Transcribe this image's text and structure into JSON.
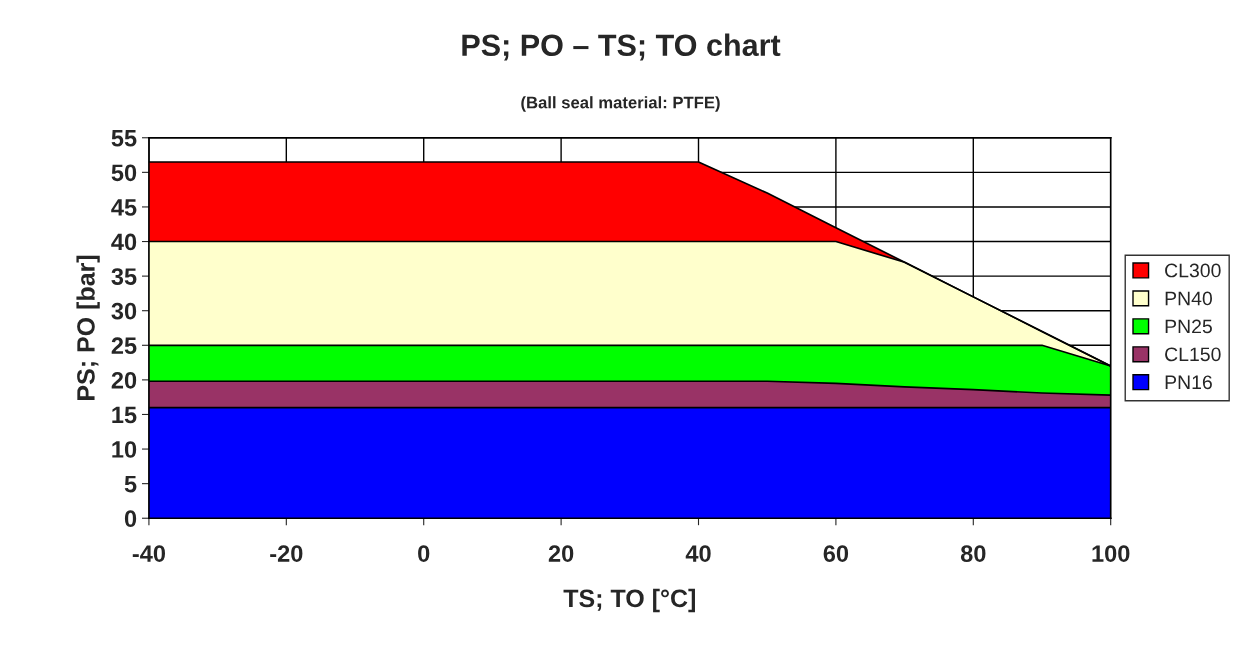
{
  "chart_data": {
    "type": "area",
    "title": "PS; PO – TS; TO chart",
    "subtitle": "(Ball seal material: PTFE)",
    "xlabel": "TS; TO [°C]",
    "ylabel": "PS; PO [bar]",
    "x": [
      -40,
      -30,
      -20,
      -10,
      0,
      10,
      20,
      30,
      40,
      50,
      60,
      70,
      80,
      90,
      100
    ],
    "series": [
      {
        "name": "CL300",
        "color": "#ff0000",
        "values": [
          51.5,
          51.5,
          51.5,
          51.5,
          51.5,
          51.5,
          51.5,
          51.5,
          51.5,
          47,
          42,
          37,
          32,
          27,
          22
        ]
      },
      {
        "name": "PN40",
        "color": "#ffffcc",
        "values": [
          40,
          40,
          40,
          40,
          40,
          40,
          40,
          40,
          40,
          40,
          40,
          37,
          32,
          27,
          22
        ]
      },
      {
        "name": "PN25",
        "color": "#00ff00",
        "values": [
          25,
          25,
          25,
          25,
          25,
          25,
          25,
          25,
          25,
          25,
          25,
          25,
          25,
          25,
          22
        ]
      },
      {
        "name": "CL150",
        "color": "#993366",
        "values": [
          19.8,
          19.8,
          19.8,
          19.8,
          19.8,
          19.8,
          19.8,
          19.8,
          19.8,
          19.8,
          19.5,
          19,
          18.6,
          18.1,
          17.8
        ]
      },
      {
        "name": "PN16",
        "color": "#0000ff",
        "values": [
          16,
          16,
          16,
          16,
          16,
          16,
          16,
          16,
          16,
          16,
          16,
          16,
          16,
          16,
          16
        ]
      }
    ],
    "xlim": [
      -40,
      100
    ],
    "xticks": [
      -40,
      -20,
      0,
      20,
      40,
      60,
      80,
      100
    ],
    "ylim": [
      0,
      55
    ],
    "yticks": [
      0,
      5,
      10,
      15,
      20,
      25,
      30,
      35,
      40,
      45,
      50,
      55
    ],
    "grid": true,
    "legend": "right"
  }
}
